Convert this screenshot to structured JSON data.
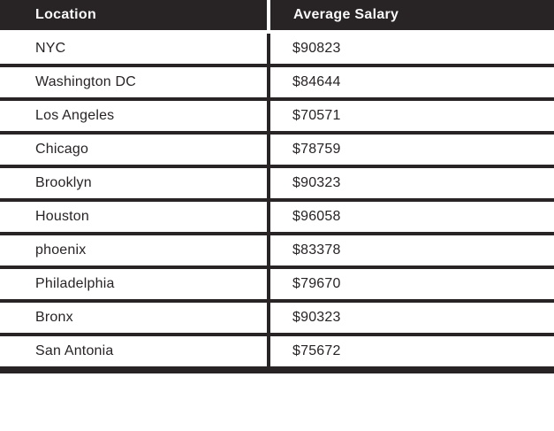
{
  "table": {
    "columns": [
      {
        "label": "Location"
      },
      {
        "label": "Average Salary"
      }
    ],
    "rows": [
      {
        "location": "NYC",
        "salary": "$90823"
      },
      {
        "location": "Washington DC",
        "salary": "$84644"
      },
      {
        "location": "Los Angeles",
        "salary": "$70571"
      },
      {
        "location": "Chicago",
        "salary": "$78759"
      },
      {
        "location": "Brooklyn",
        "salary": "$90323"
      },
      {
        "location": "Houston",
        "salary": "$96058"
      },
      {
        "location": "phoenix",
        "salary": "$83378"
      },
      {
        "location": "Philadelphia",
        "salary": "$79670"
      },
      {
        "location": "Bronx",
        "salary": "$90323"
      },
      {
        "location": "San Antonia",
        "salary": "$75672"
      }
    ]
  },
  "colors": {
    "header_bg": "#282425",
    "header_text": "#fafafa",
    "row_bg": "#ffffff",
    "body_text": "#282425",
    "border": "#282425"
  },
  "chart_data": {
    "type": "table",
    "title": "",
    "columns": [
      "Location",
      "Average Salary"
    ],
    "categories": [
      "NYC",
      "Washington DC",
      "Los Angeles",
      "Chicago",
      "Brooklyn",
      "Houston",
      "phoenix",
      "Philadelphia",
      "Bronx",
      "San Antonia"
    ],
    "values": [
      90823,
      84644,
      70571,
      78759,
      90323,
      96058,
      83378,
      79670,
      90323,
      75672
    ],
    "value_unit": "$"
  }
}
